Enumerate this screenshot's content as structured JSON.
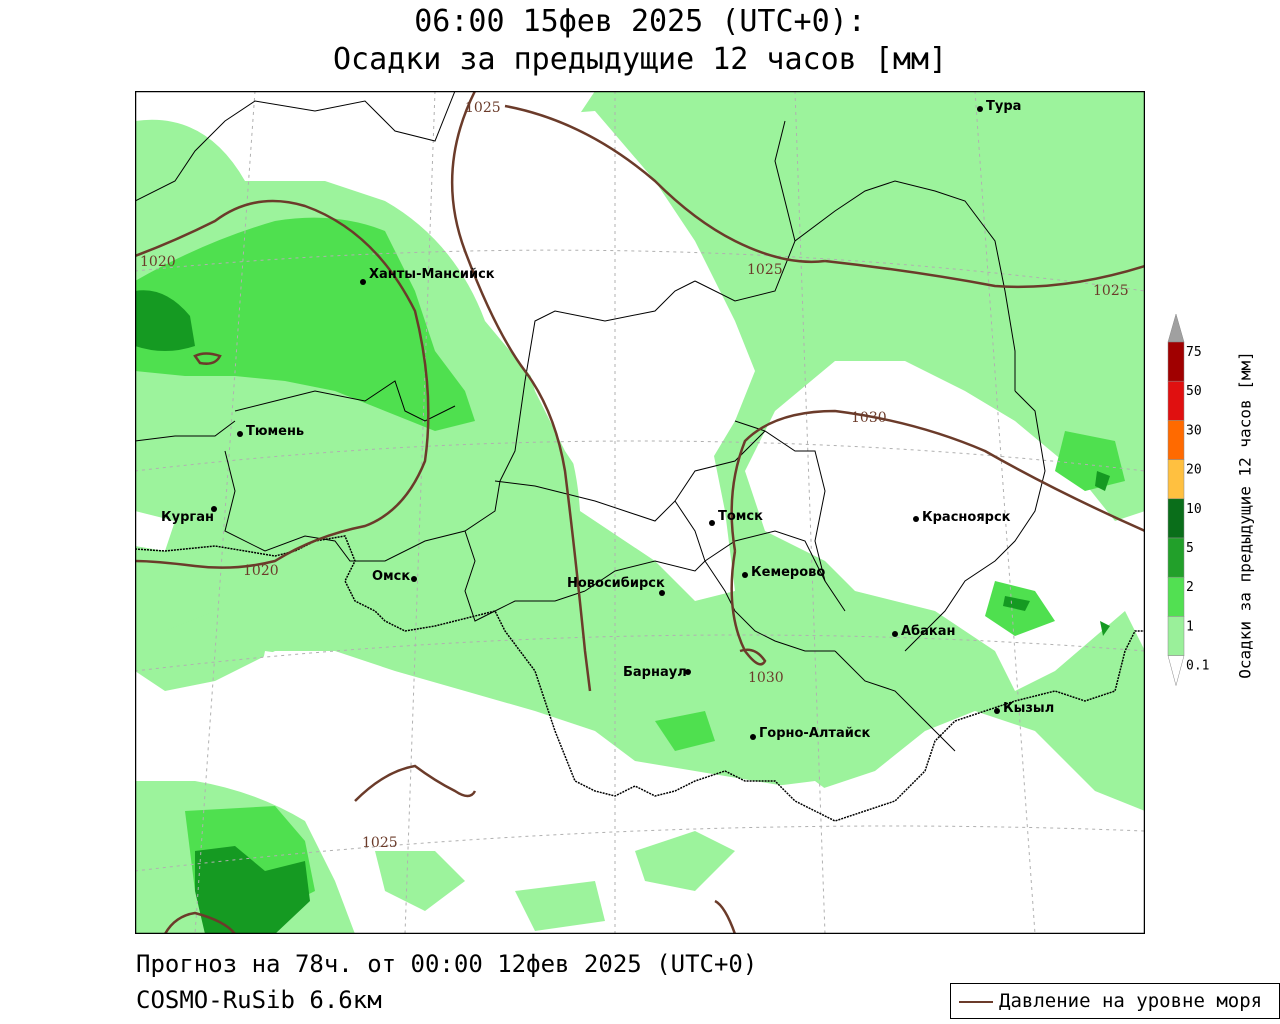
{
  "header": {
    "line1": "06:00 15фев 2025 (UTC+0):",
    "line2": "Осадки за предыдущие 12 часов [мм]"
  },
  "footer": {
    "forecast": "Прогноз на 78ч. от 00:00 12фев 2025 (UTC+0)",
    "model": "COSMO-RuSib 6.6км"
  },
  "legend": {
    "pressure_label": "Давление на уровне моря"
  },
  "colorbar": {
    "title": "Осадки за предыдущие 12 часов [мм]",
    "ticks": [
      "75",
      "50",
      "30",
      "20",
      "10",
      "5",
      "2",
      "1",
      "0.1"
    ],
    "colors": [
      "#a0a0a0",
      "#a00000",
      "#e01010",
      "#ff6a00",
      "#ffc040",
      "#0a6e1a",
      "#22a02a",
      "#52e052",
      "#9af09a",
      "#ffffff"
    ]
  },
  "map": {
    "colors": {
      "light_green": "#9cf39c",
      "mid_green": "#4fe04f",
      "dark_green": "#159a22",
      "isobar": "#6b3b2a"
    },
    "cities": [
      {
        "name": "Тура"
      },
      {
        "name": "Ханты-Мансийск"
      },
      {
        "name": "Тюмень"
      },
      {
        "name": "Курган"
      },
      {
        "name": "Омск"
      },
      {
        "name": "Томск"
      },
      {
        "name": "Красноярск"
      },
      {
        "name": "Новосибирск"
      },
      {
        "name": "Кемерово"
      },
      {
        "name": "Абакан"
      },
      {
        "name": "Барнаул"
      },
      {
        "name": "Кызыл"
      },
      {
        "name": "Горно-Алтайск"
      }
    ],
    "isobar_labels": [
      "1025",
      "1020",
      "1025",
      "1025",
      "1030",
      "1020",
      "1030",
      "1025"
    ]
  }
}
